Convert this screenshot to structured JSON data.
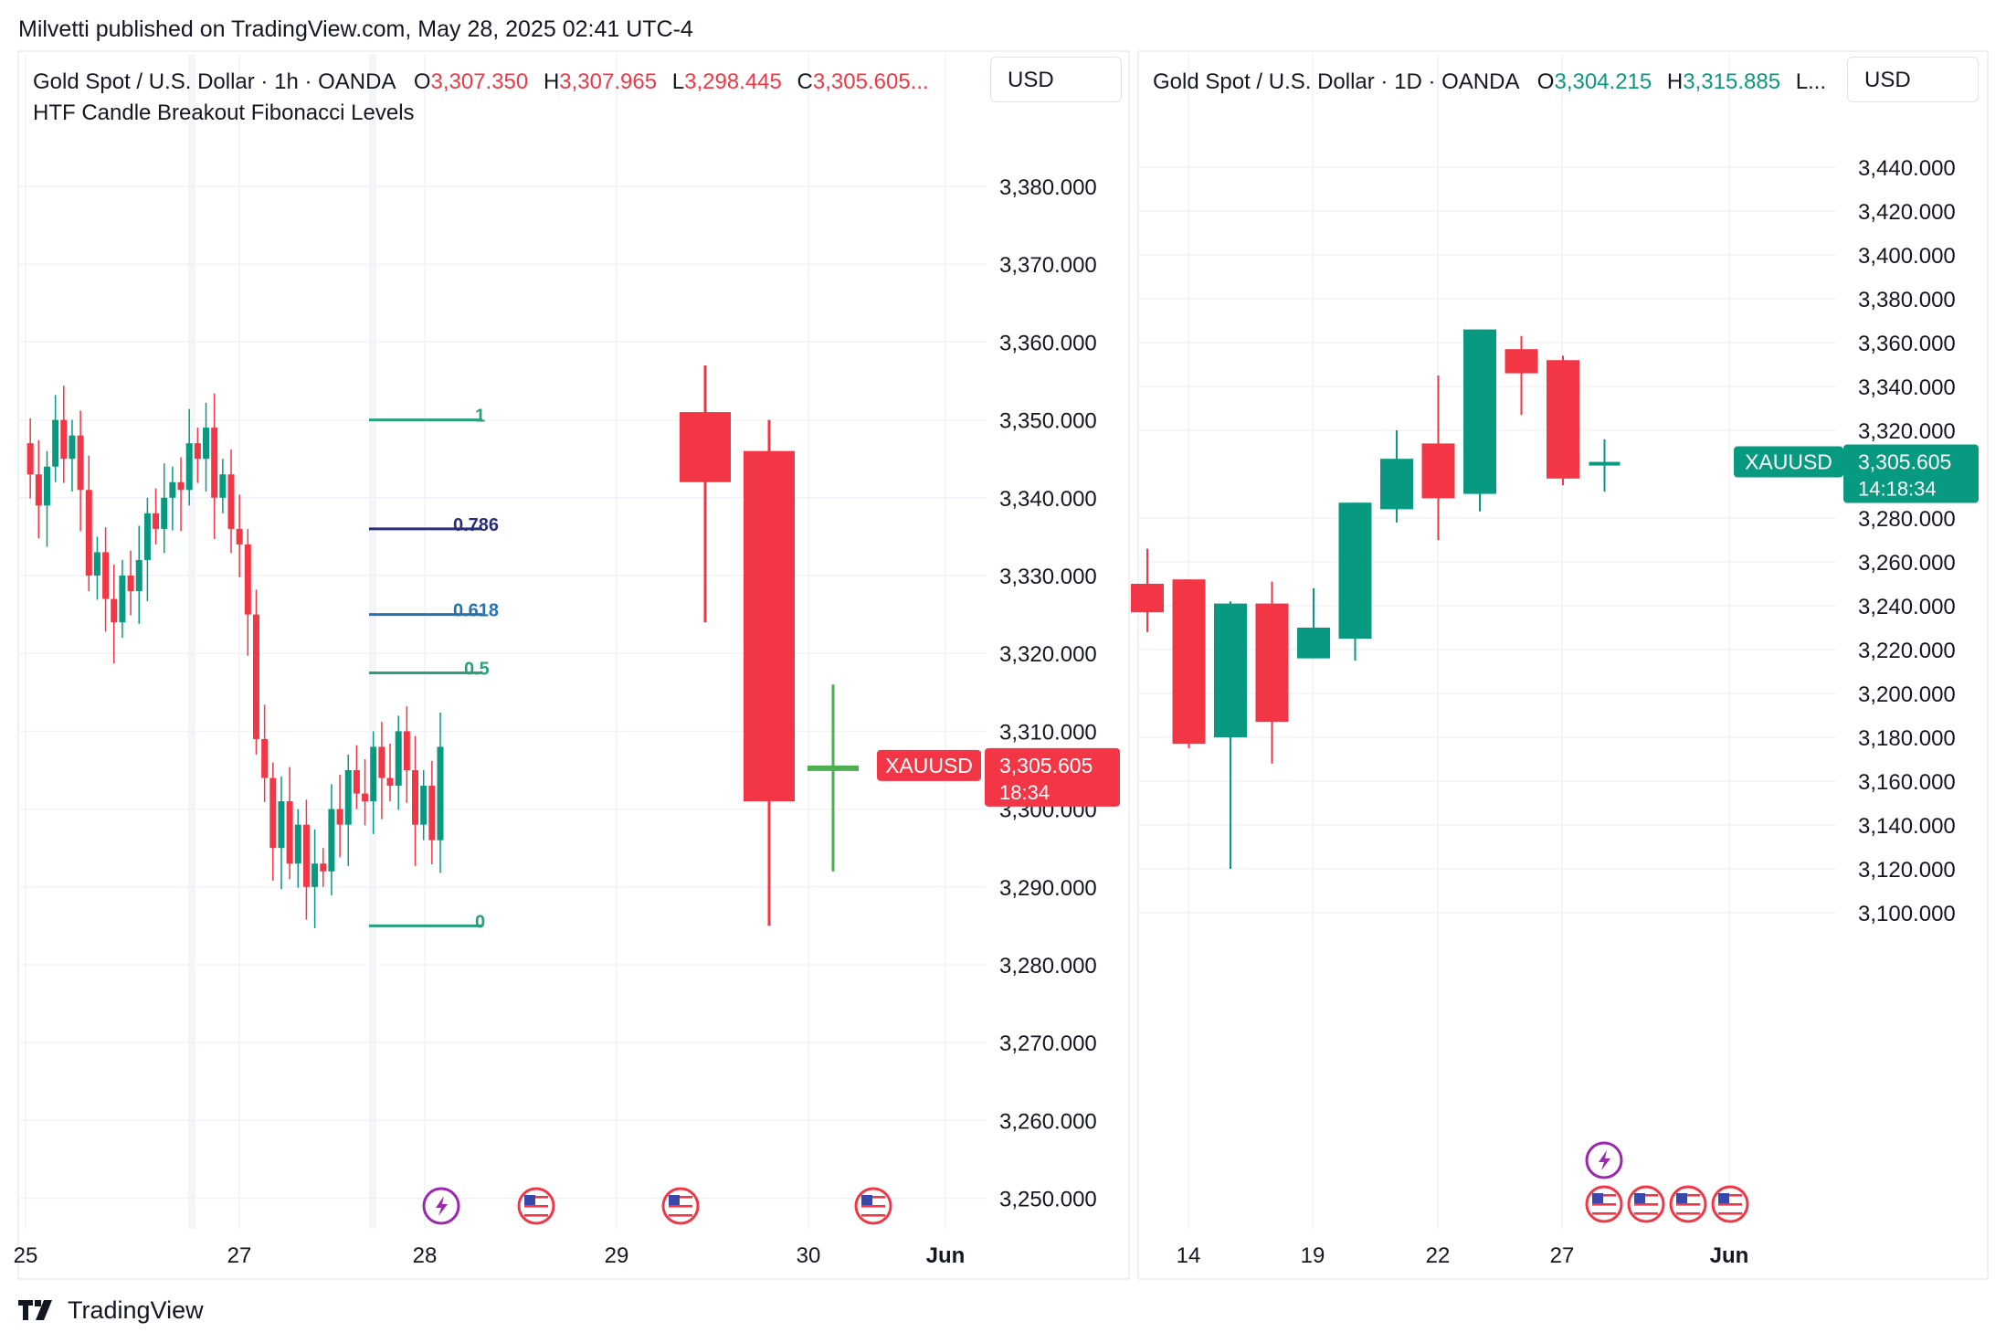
{
  "page": {
    "publisher_line": "Milvetti published on TradingView.com, May 28, 2025 02:41 UTC-4",
    "footer_brand": "TradingView",
    "colors": {
      "up": "#089981",
      "down": "#f23645",
      "grid": "#f0f3fa",
      "text": "#131722"
    }
  },
  "chart_data": [
    {
      "type": "candlestick",
      "title": "Gold Spot / U.S. Dollar · 1h · OANDA",
      "currency": "USD",
      "ohlc": {
        "o_label": "O",
        "o": "3,307.350",
        "h_label": "H",
        "h": "3,307.965",
        "l_label": "L",
        "l": "3,298.445",
        "c_label": "C",
        "c": "3,305.605..."
      },
      "indicator": "HTF Candle Breakout Fibonacci Levels",
      "y_ticks": [
        "3,380.000",
        "3,370.000",
        "3,360.000",
        "3,350.000",
        "3,340.000",
        "3,330.000",
        "3,320.000",
        "3,310.000",
        "3,300.000",
        "3,290.000",
        "3,280.000",
        "3,270.000",
        "3,260.000",
        "3,250.000"
      ],
      "y_tick_values": [
        3380,
        3370,
        3360,
        3350,
        3340,
        3330,
        3320,
        3310,
        3300,
        3290,
        3280,
        3270,
        3260,
        3250
      ],
      "x_ticks": [
        "25",
        "27",
        "28",
        "29",
        "30",
        "Jun"
      ],
      "last_price": {
        "symbol": "XAUUSD",
        "price": "3,305.605",
        "countdown": "18:34",
        "value": 3305.605
      },
      "fib_levels": [
        {
          "label": "1",
          "value": 3350,
          "color": "#26a17b"
        },
        {
          "label": "0.786",
          "value": 3336,
          "color": "#2a2e7a"
        },
        {
          "label": "0.618",
          "value": 3325,
          "color": "#2672b0"
        },
        {
          "label": "0.5",
          "value": 3317.5,
          "color": "#26a17b"
        },
        {
          "label": "0",
          "value": 3285,
          "color": "#26a17b"
        }
      ],
      "htf_candles": [
        {
          "o": 3351,
          "h": 3357,
          "l": 3324,
          "c": 3342,
          "dir": "down"
        },
        {
          "o": 3346,
          "h": 3350,
          "l": 3285,
          "c": 3301,
          "dir": "down"
        },
        {
          "o": 3305,
          "h": 3316,
          "l": 3292,
          "c": 3305.6,
          "dir": "flat"
        }
      ],
      "hourly_series": [
        3347,
        3343,
        3339,
        3344,
        3350,
        3345,
        3348,
        3341,
        3330,
        3333,
        3327,
        3324,
        3330,
        3328,
        3332,
        3338,
        3336,
        3340,
        3342,
        3341,
        3347,
        3345,
        3349,
        3340,
        3343,
        3336,
        3334,
        3325,
        3309,
        3304,
        3295,
        3301,
        3293,
        3298,
        3290,
        3293,
        3292,
        3300,
        3298,
        3305,
        3302,
        3301,
        3308,
        3304,
        3303,
        3310,
        3305,
        3298,
        3303,
        3296,
        3308
      ]
    },
    {
      "type": "candlestick",
      "title": "Gold Spot / U.S. Dollar · 1D · OANDA",
      "currency": "USD",
      "ohlc": {
        "o_label": "O",
        "o": "3,304.215",
        "h_label": "H",
        "h": "3,315.885",
        "l_label": "L...",
        "l": "",
        "c_label": "",
        "c": ""
      },
      "y_ticks": [
        "3,440.000",
        "3,420.000",
        "3,400.000",
        "3,380.000",
        "3,360.000",
        "3,340.000",
        "3,320.000",
        "3,280.000",
        "3,260.000",
        "3,240.000",
        "3,220.000",
        "3,200.000",
        "3,180.000",
        "3,160.000",
        "3,140.000",
        "3,120.000",
        "3,100.000"
      ],
      "y_tick_values": [
        3440,
        3420,
        3400,
        3380,
        3360,
        3340,
        3320,
        3280,
        3260,
        3240,
        3220,
        3200,
        3180,
        3160,
        3140,
        3120,
        3100
      ],
      "x_ticks": [
        "14",
        "19",
        "22",
        "27",
        "Jun"
      ],
      "last_price": {
        "symbol": "XAUUSD",
        "price": "3,305.605",
        "countdown": "14:18:34",
        "value": 3305.605
      },
      "daily_candles": [
        {
          "o": 3250,
          "h": 3266,
          "l": 3228,
          "c": 3237
        },
        {
          "o": 3252,
          "h": 3248,
          "l": 3175,
          "c": 3177
        },
        {
          "o": 3180,
          "h": 3242,
          "l": 3120,
          "c": 3241
        },
        {
          "o": 3241,
          "h": 3251,
          "l": 3168,
          "c": 3187
        },
        {
          "o": 3216,
          "h": 3248,
          "l": 3225,
          "c": 3230
        },
        {
          "o": 3225,
          "h": 3285,
          "l": 3215,
          "c": 3287
        },
        {
          "o": 3284,
          "h": 3320,
          "l": 3278,
          "c": 3307
        },
        {
          "o": 3314,
          "h": 3345,
          "l": 3270,
          "c": 3289
        },
        {
          "o": 3291,
          "h": 3366,
          "l": 3283,
          "c": 3366
        },
        {
          "o": 3357,
          "h": 3363,
          "l": 3327,
          "c": 3346
        },
        {
          "o": 3352,
          "h": 3354,
          "l": 3295,
          "c": 3298
        },
        {
          "o": 3304,
          "h": 3315.9,
          "l": 3292,
          "c": 3305.6
        }
      ]
    }
  ]
}
